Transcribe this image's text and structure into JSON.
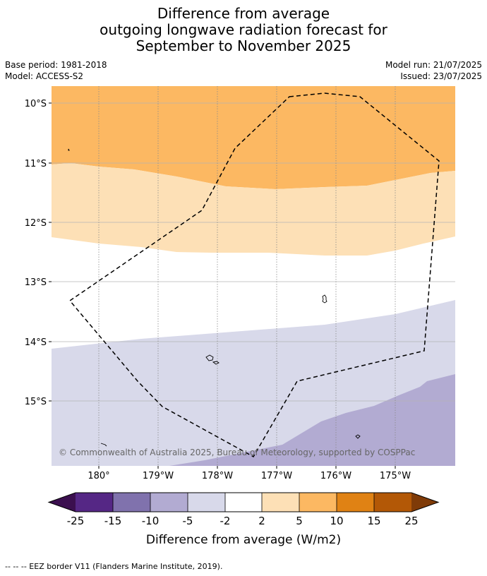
{
  "title": {
    "line1": "Difference from average",
    "line2": "outgoing longwave radiation forecast for",
    "line3": "September to November 2025"
  },
  "meta": {
    "base_period": "Base period: 1981-2018",
    "model": "Model: ACCESS-S2",
    "model_run": "Model run: 21/07/2025",
    "issued": "Issued: 23/07/2025"
  },
  "map": {
    "lat_labels": [
      "10°S",
      "11°S",
      "12°S",
      "13°S",
      "14°S",
      "15°S"
    ],
    "lon_labels": [
      "180°",
      "179°W",
      "178°W",
      "177°W",
      "176°W",
      "175°W"
    ],
    "copyright": "© Commonwealth of Australia 2025, Bureau of Meteorology, supported by COSPPac",
    "eez_line_style": "dashed black"
  },
  "colorbar": {
    "ticks": [
      "-25",
      "-15",
      "-10",
      "-5",
      "-2",
      "2",
      "5",
      "10",
      "15",
      "25"
    ],
    "colors": {
      "below_min": "#3b0f4f",
      "bins": [
        "#552785",
        "#8072ad",
        "#b2abd2",
        "#d8d9ea",
        "#ffffff",
        "#fde0b6",
        "#fcb862",
        "#e08214",
        "#b35806"
      ],
      "above_max": "#7f3b08"
    },
    "label": "Difference from average (W/m2)"
  },
  "footnote": "--  --  -- EEZ border V11 (Flanders Marine Institute, 2019)."
}
